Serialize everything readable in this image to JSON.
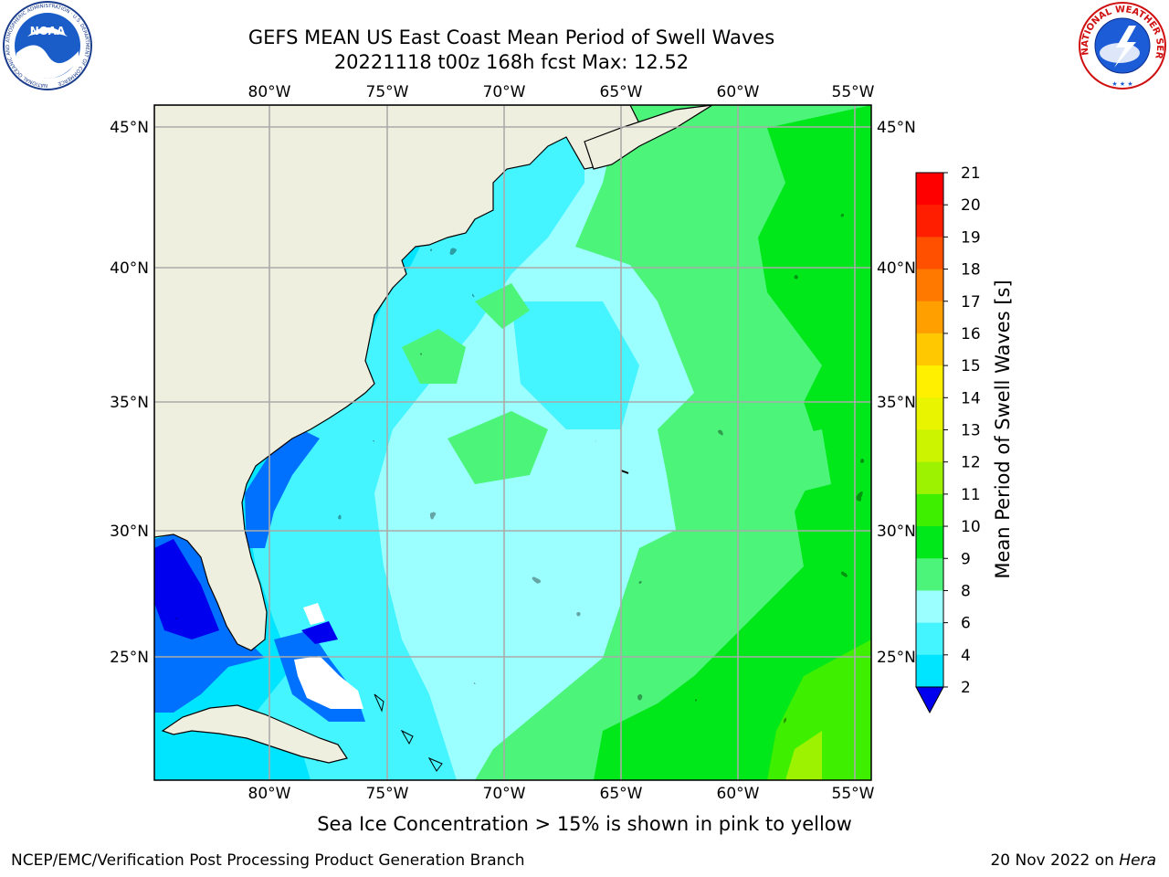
{
  "title_line1": "GEFS MEAN US East Coast Mean Period of Swell Waves",
  "title_line2": "20221118 t00z 168h fcst   Max: 12.52",
  "top_lon_labels": [
    "80°W",
    "75°W",
    "70°W",
    "65°W",
    "60°W",
    "55°W"
  ],
  "bottom_lon_labels": [
    "80°W",
    "75°W",
    "70°W",
    "65°W",
    "60°W",
    "55°W"
  ],
  "left_lat_labels": [
    "45°N",
    "40°N",
    "35°N",
    "30°N",
    "25°N"
  ],
  "right_lat_labels": [
    "45°N",
    "40°N",
    "35°N",
    "30°N",
    "25°N"
  ],
  "colorbar": {
    "label": "Mean Period of Swell Waves [s]",
    "ticks": [
      "21",
      "20",
      "19",
      "18",
      "17",
      "16",
      "15",
      "14",
      "13",
      "12",
      "11",
      "10",
      "9",
      "8",
      "6",
      "4",
      "2"
    ],
    "colors": [
      "#0000ee",
      "#0070ff",
      "#00e5ff",
      "#44f4ff",
      "#9cffff",
      "#4cf57a",
      "#00e81a",
      "#3ef000",
      "#9cf200",
      "#ccf400",
      "#e8f400",
      "#fff000",
      "#ffc800",
      "#ffa000",
      "#ff7800",
      "#ff5000",
      "#ff1e00",
      "#ff0000"
    ]
  },
  "colors": {
    "land": "#efefe0",
    "ocean_dominant": "#9cffff"
  },
  "caption": "Sea Ice Concentration > 15% is shown in pink to yellow",
  "credit": "NCEP/EMC/Verification Post Processing Product Generation Branch",
  "date_text": "20 Nov 2022 on ",
  "host_text": "Hera",
  "logos": {
    "noaa_text": "NOAA",
    "noaa_ring": "NATIONAL OCEANIC AND ATMOSPHERIC ADMINISTRATION · U.S. DEPARTMENT OF COMMERCE",
    "nws_ring": "NATIONAL WEATHER SERVICE"
  }
}
